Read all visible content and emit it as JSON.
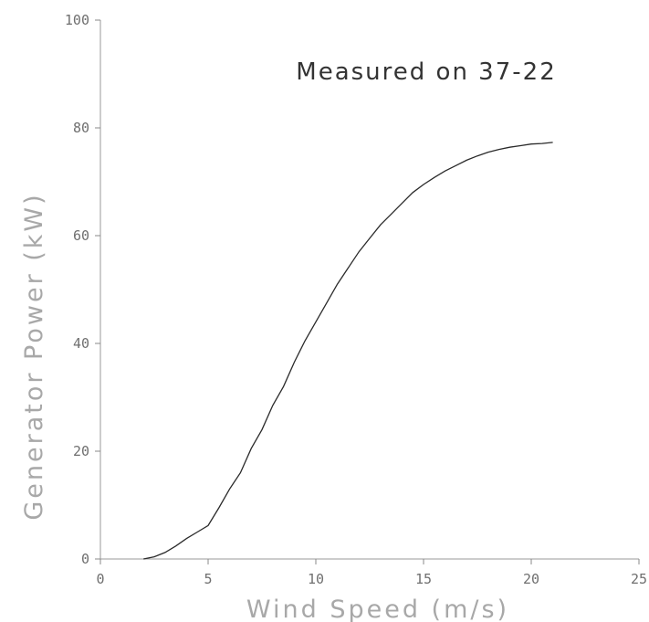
{
  "chart_data": {
    "type": "line",
    "title": "Measured on 37-22",
    "xlabel": "Wind Speed (m/s)",
    "ylabel": "Generator Power (kW)",
    "xlim": [
      0,
      25
    ],
    "ylim": [
      0,
      100
    ],
    "x_ticks": [
      0,
      5,
      10,
      15,
      20,
      25
    ],
    "x_tick_labels": [
      "0",
      "5",
      "10",
      "15",
      "20",
      "25"
    ],
    "y_ticks": [
      0,
      20,
      40,
      60,
      80,
      100
    ],
    "y_tick_labels": [
      "0",
      "20",
      "40",
      "60",
      "80",
      "100"
    ],
    "grid": false,
    "series": [
      {
        "x": [
          2.0,
          2.5,
          3.0,
          3.5,
          4.0,
          4.5,
          5.0,
          5.5,
          6.0,
          6.5,
          7.0,
          7.5,
          8.0,
          8.5,
          9.0,
          9.5,
          10.0,
          10.5,
          11.0,
          11.5,
          12.0,
          12.5,
          13.0,
          13.5,
          14.0,
          14.5,
          15.0,
          15.5,
          16.0,
          16.5,
          17.0,
          17.5,
          18.0,
          18.5,
          19.0,
          19.5,
          20.0,
          20.5,
          21.0
        ],
        "y": [
          0.0,
          0.4,
          1.2,
          2.4,
          3.8,
          5.0,
          6.2,
          9.5,
          13.0,
          16.0,
          20.5,
          24.0,
          28.5,
          32.0,
          36.5,
          40.5,
          44.0,
          47.5,
          51.0,
          54.0,
          57.0,
          59.5,
          62.0,
          64.0,
          66.0,
          68.0,
          69.5,
          70.8,
          72.0,
          73.0,
          74.0,
          74.8,
          75.5,
          76.0,
          76.4,
          76.7,
          77.0,
          77.1,
          77.3
        ]
      }
    ]
  }
}
